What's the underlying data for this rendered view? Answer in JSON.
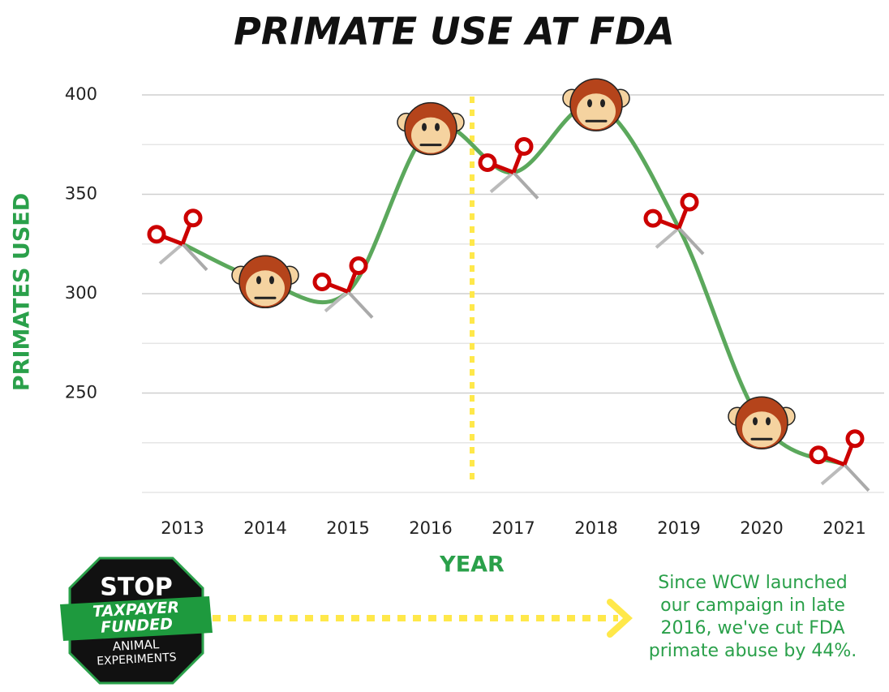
{
  "chart_data": {
    "type": "line",
    "title": "PRIMATE USE AT FDA",
    "categories": [
      "2013",
      "2014",
      "2015",
      "2016",
      "2017",
      "2018",
      "2019",
      "2020",
      "2021"
    ],
    "values": [
      325,
      306,
      301,
      383,
      361,
      395,
      333,
      235,
      214
    ],
    "color": "#5ba85c",
    "xlabel": "YEAR",
    "ylabel": "PRIMATES USED",
    "ylim": [
      200,
      400
    ],
    "yticks": [
      250,
      300,
      350,
      400
    ],
    "minor_yticks": [
      200,
      225,
      275,
      325,
      375
    ],
    "grid": true,
    "annotation": [
      "Since WCW launched",
      "our campaign in late",
      "2016, we've cut FDA",
      "primate abuse by 44%."
    ],
    "logo": {
      "top": "STOP",
      "band": [
        "TAXPAYER",
        "FUNDED"
      ],
      "bottom": [
        "ANIMAL",
        "EXPERIMENTS"
      ]
    }
  }
}
